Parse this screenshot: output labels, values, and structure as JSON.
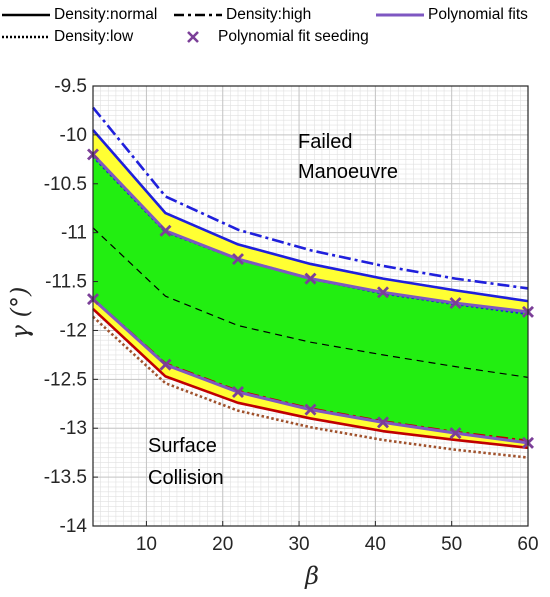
{
  "legend": {
    "normal": "Density:normal",
    "high": "Density:high",
    "low": "Density:low",
    "seed": "Polynomial fit seeding",
    "fits": "Polynomial fits"
  },
  "colors": {
    "upper_boundary": "#1f1fdc",
    "lower_boundary": "#c00000",
    "lower_low_density": "#a0522d",
    "fit": "#7e57c2",
    "seed": "#7b3f98",
    "safe_region": "#22ee11",
    "margin_region": "#ffff33"
  },
  "chart_data": {
    "type": "line",
    "xlabel": "β",
    "ylabel": "γ (°)",
    "xlim": [
      3,
      60
    ],
    "ylim": [
      -14,
      -9.5
    ],
    "xticks": [
      10,
      20,
      30,
      40,
      50,
      60
    ],
    "yticks": [
      -9.5,
      -10,
      -10.5,
      -11,
      -11.5,
      -12,
      -12.5,
      -13,
      -13.5,
      -14
    ],
    "grid": true,
    "legend_position": "top",
    "annotations": [
      "Failed Manoeuvre",
      "Surface Collision"
    ],
    "x": [
      3,
      12.5,
      22,
      31.5,
      41,
      50.5,
      60
    ],
    "series": [
      {
        "name": "Density:normal",
        "boundary": "upper",
        "style": "solid",
        "values": [
          -9.95,
          -10.8,
          -11.12,
          -11.32,
          -11.47,
          -11.59,
          -11.7
        ]
      },
      {
        "name": "Density:high",
        "boundary": "upper",
        "style": "dashdot",
        "values": [
          -9.72,
          -10.63,
          -10.97,
          -11.18,
          -11.34,
          -11.47,
          -11.57
        ]
      },
      {
        "name": "Density:low",
        "boundary": "upper",
        "style": "dotted",
        "values": [
          -10.22,
          -10.99,
          -11.27,
          -11.47,
          -11.62,
          -11.73,
          -11.83
        ]
      },
      {
        "name": "Polynomial fits",
        "boundary": "upper",
        "style": "solid",
        "values": [
          -10.2,
          -10.98,
          -11.27,
          -11.47,
          -11.61,
          -11.72,
          -11.81
        ]
      },
      {
        "name": "",
        "boundary": "middle",
        "style": "dashed",
        "values": [
          -10.95,
          -11.65,
          -11.95,
          -12.12,
          -12.25,
          -12.37,
          -12.48
        ]
      },
      {
        "name": "Density:normal",
        "boundary": "lower",
        "style": "solid",
        "values": [
          -11.78,
          -12.47,
          -12.74,
          -12.9,
          -13.03,
          -13.12,
          -13.2
        ]
      },
      {
        "name": "Density:high",
        "boundary": "lower",
        "style": "dashdot",
        "values": [
          -11.68,
          -12.34,
          -12.62,
          -12.8,
          -12.93,
          -13.04,
          -13.13
        ]
      },
      {
        "name": "Density:low",
        "boundary": "lower",
        "style": "dotted",
        "values": [
          -11.86,
          -12.54,
          -12.82,
          -12.99,
          -13.12,
          -13.22,
          -13.3
        ]
      },
      {
        "name": "Polynomial fits",
        "boundary": "lower",
        "style": "solid",
        "values": [
          -11.68,
          -12.35,
          -12.63,
          -12.81,
          -12.94,
          -13.05,
          -13.15
        ]
      }
    ],
    "seeds": {
      "name": "Polynomial fit seeding",
      "upper": [
        [
          3,
          -10.2
        ],
        [
          12.5,
          -10.98
        ],
        [
          22,
          -11.27
        ],
        [
          31.5,
          -11.47
        ],
        [
          41,
          -11.61
        ],
        [
          50.5,
          -11.72
        ],
        [
          60,
          -11.81
        ]
      ],
      "lower": [
        [
          3,
          -11.68
        ],
        [
          12.5,
          -12.35
        ],
        [
          22,
          -12.63
        ],
        [
          31.5,
          -12.81
        ],
        [
          41,
          -12.94
        ],
        [
          50.5,
          -13.05
        ],
        [
          60,
          -13.15
        ]
      ]
    }
  }
}
